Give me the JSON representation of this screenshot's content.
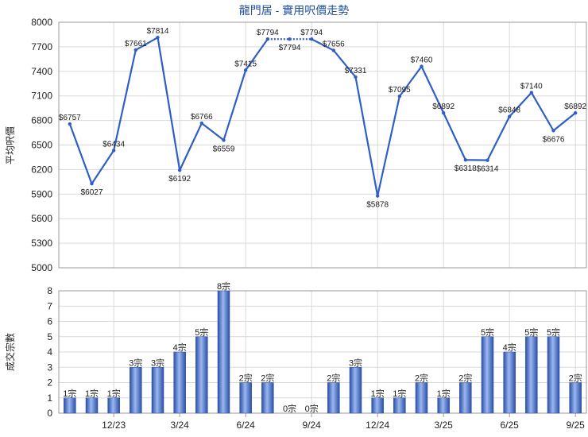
{
  "chart_data": [
    {
      "type": "line",
      "title": "龍門居 - 實用呎價走勢",
      "ylabel": "平均呎價",
      "ylim": [
        5000,
        8000
      ],
      "yticks": [
        5000,
        5300,
        5600,
        5900,
        6200,
        6500,
        6800,
        7100,
        7400,
        7700,
        8000
      ],
      "grid": true,
      "series": [
        {
          "values": [
            6757,
            6027,
            6434,
            7661,
            7814,
            6192,
            6766,
            6559,
            7415,
            7794,
            7794,
            7794,
            7656,
            7331,
            5878,
            7095,
            7460,
            6892,
            6318,
            6314,
            6848,
            7140,
            6676,
            6892
          ],
          "labels": [
            "$6757",
            "$6027",
            "$6434",
            "$7661",
            "$7814",
            "$6192",
            "$6766",
            "$6559",
            "$7415",
            "$7794",
            "$7794",
            "$7794",
            "$7656",
            "$7331",
            "$5878",
            "$7095",
            "$7460",
            "$6892",
            "$6318",
            "$6314",
            "$6848",
            "$7140",
            "$6676",
            "$6892"
          ],
          "interpolated_segment": [
            9,
            11
          ]
        }
      ]
    },
    {
      "type": "bar",
      "ylabel": "成交宗數",
      "ylim": [
        0,
        8
      ],
      "yticks": [
        0,
        1,
        2,
        3,
        4,
        5,
        6,
        7,
        8
      ],
      "grid": true,
      "values": [
        1,
        1,
        1,
        3,
        3,
        4,
        5,
        8,
        2,
        2,
        0,
        0,
        2,
        3,
        1,
        1,
        2,
        1,
        2,
        5,
        4,
        5,
        5,
        2
      ],
      "labels": [
        "1宗",
        "1宗",
        "1宗",
        "3宗",
        "3宗",
        "4宗",
        "5宗",
        "8宗",
        "2宗",
        "2宗",
        "0宗",
        "0宗",
        "2宗",
        "3宗",
        "1宗",
        "1宗",
        "2宗",
        "1宗",
        "2宗",
        "5宗",
        "4宗",
        "5宗",
        "5宗",
        "2宗"
      ],
      "x_tick_labels": [
        {
          "label": "12/23",
          "month_index": 2
        },
        {
          "label": "3/24",
          "month_index": 5
        },
        {
          "label": "6/24",
          "month_index": 8
        },
        {
          "label": "9/24",
          "month_index": 11
        },
        {
          "label": "12/24",
          "month_index": 14
        },
        {
          "label": "3/25",
          "month_index": 17
        },
        {
          "label": "6/25",
          "month_index": 20
        },
        {
          "label": "9/25",
          "month_index": 23
        }
      ]
    }
  ],
  "colors": {
    "line": "#2f5fc6",
    "grid": "#d9d9d9",
    "axis": "#9a9a9a",
    "bar_dark": "#2a4fa8",
    "bar_light": "#9bb7ee",
    "title": "#1f4e9a"
  }
}
